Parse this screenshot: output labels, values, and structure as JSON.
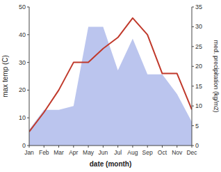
{
  "chart_data": {
    "type": "line",
    "categories": [
      "Jan",
      "Feb",
      "Mar",
      "Apr",
      "May",
      "Jun",
      "Jul",
      "Aug",
      "Sep",
      "Oct",
      "Nov",
      "Dec"
    ],
    "xlabel": "date (month)",
    "ylabel": "max temp (C)",
    "y2label": "med. precipitation (kg/m2)",
    "series": [
      {
        "type": "area",
        "axis": "y2",
        "color": "#bbc5ee",
        "values": [
          4,
          9,
          9,
          10,
          30,
          30,
          19,
          27,
          18,
          18,
          13,
          6
        ]
      },
      {
        "type": "line",
        "color": "#c0392b",
        "values": [
          5,
          12,
          20,
          30,
          30,
          35,
          39,
          46,
          40,
          26,
          26,
          13
        ]
      }
    ],
    "ylim": [
      0,
      50
    ],
    "yticks": [
      0,
      10,
      20,
      30,
      40,
      50
    ],
    "y2lim": [
      0,
      35
    ],
    "y2ticks": [
      0,
      5,
      10,
      15,
      20,
      25,
      30,
      35
    ],
    "grid": false
  }
}
